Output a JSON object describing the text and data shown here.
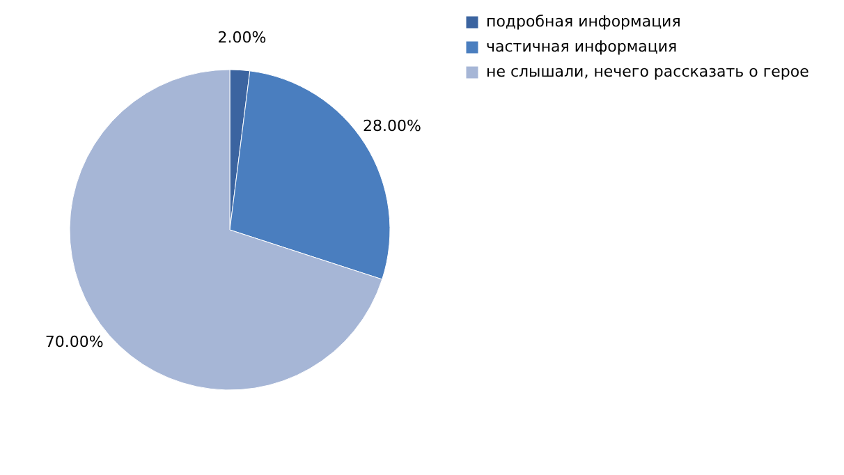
{
  "chart_data": {
    "type": "pie",
    "categories": [
      "подробная информация",
      "частичная информация",
      "не слышали, нечего рассказать о герое"
    ],
    "values": [
      2,
      28,
      70
    ],
    "colors": [
      "#3b64a0",
      "#4a7ebf",
      "#a6b6d6"
    ],
    "value_labels": [
      "2.00%",
      "28.00%",
      "70.00%"
    ],
    "legend": "right"
  }
}
